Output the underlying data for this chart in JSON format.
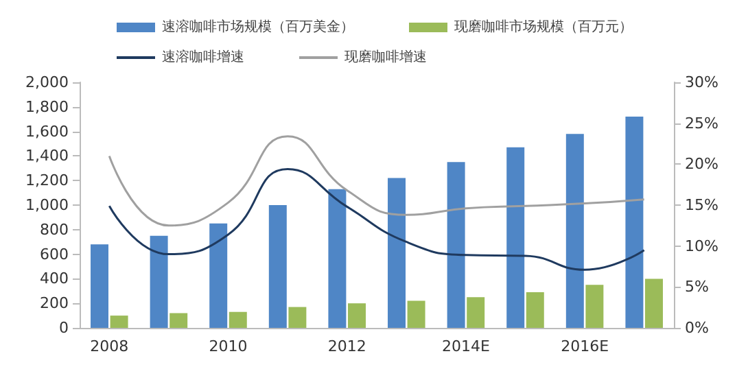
{
  "chart_data": {
    "type": "bar",
    "categories": [
      "2008",
      null,
      "2010",
      null,
      "2012",
      null,
      "2014E",
      null,
      "2016E",
      null
    ],
    "series": [
      {
        "name": "速溶咖啡市场规模（百万美金）",
        "color": "#4f86c6",
        "values": [
          680,
          750,
          850,
          1000,
          1130,
          1220,
          1350,
          1470,
          1580,
          1720
        ]
      },
      {
        "name": "现磨咖啡市场规模（百万元）",
        "color": "#9bbb59",
        "values": [
          100,
          120,
          130,
          170,
          200,
          220,
          250,
          290,
          350,
          400
        ]
      },
      {
        "name": "速溶咖啡增速",
        "type": "line",
        "axis": "y2",
        "color": "#1f3a5f",
        "values": [
          14.9,
          9.0,
          11.4,
          19.4,
          14.8,
          10.5,
          8.9,
          8.8,
          7.1,
          9.5
        ]
      },
      {
        "name": "现磨咖啡增速",
        "type": "line",
        "axis": "y2",
        "color": "#a0a0a0",
        "values": [
          21.0,
          12.5,
          15.3,
          23.4,
          16.8,
          13.8,
          14.6,
          14.9,
          15.2,
          15.7
        ]
      }
    ],
    "ylim": [
      0,
      2000
    ],
    "yticks": [
      0,
      {
        "value": 200,
        "label": "200"
      },
      {
        "value": 400,
        "label": "400"
      },
      {
        "value": 600,
        "label": "600"
      },
      {
        "value": 800,
        "label": "800"
      },
      {
        "value": 1000,
        "label": "1,000"
      },
      {
        "value": 1200,
        "label": "1,200"
      },
      {
        "value": 1400,
        "label": "1,400"
      },
      {
        "value": 1600,
        "label": "1,600"
      },
      {
        "value": 1800,
        "label": "1,800"
      },
      {
        "value": 2000,
        "label": "2,000"
      }
    ],
    "y2lim": [
      0,
      30
    ],
    "y2ticks": [
      {
        "value": 0,
        "label": "0%"
      },
      {
        "value": 5,
        "label": "5%"
      },
      {
        "value": 10,
        "label": "10%"
      },
      {
        "value": 15,
        "label": "15%"
      },
      {
        "value": 20,
        "label": "20%"
      },
      {
        "value": 25,
        "label": "25%"
      },
      {
        "value": 30,
        "label": "30%"
      }
    ],
    "grid": false,
    "legend": "top",
    "marker": "none",
    "line_style": "solid"
  }
}
